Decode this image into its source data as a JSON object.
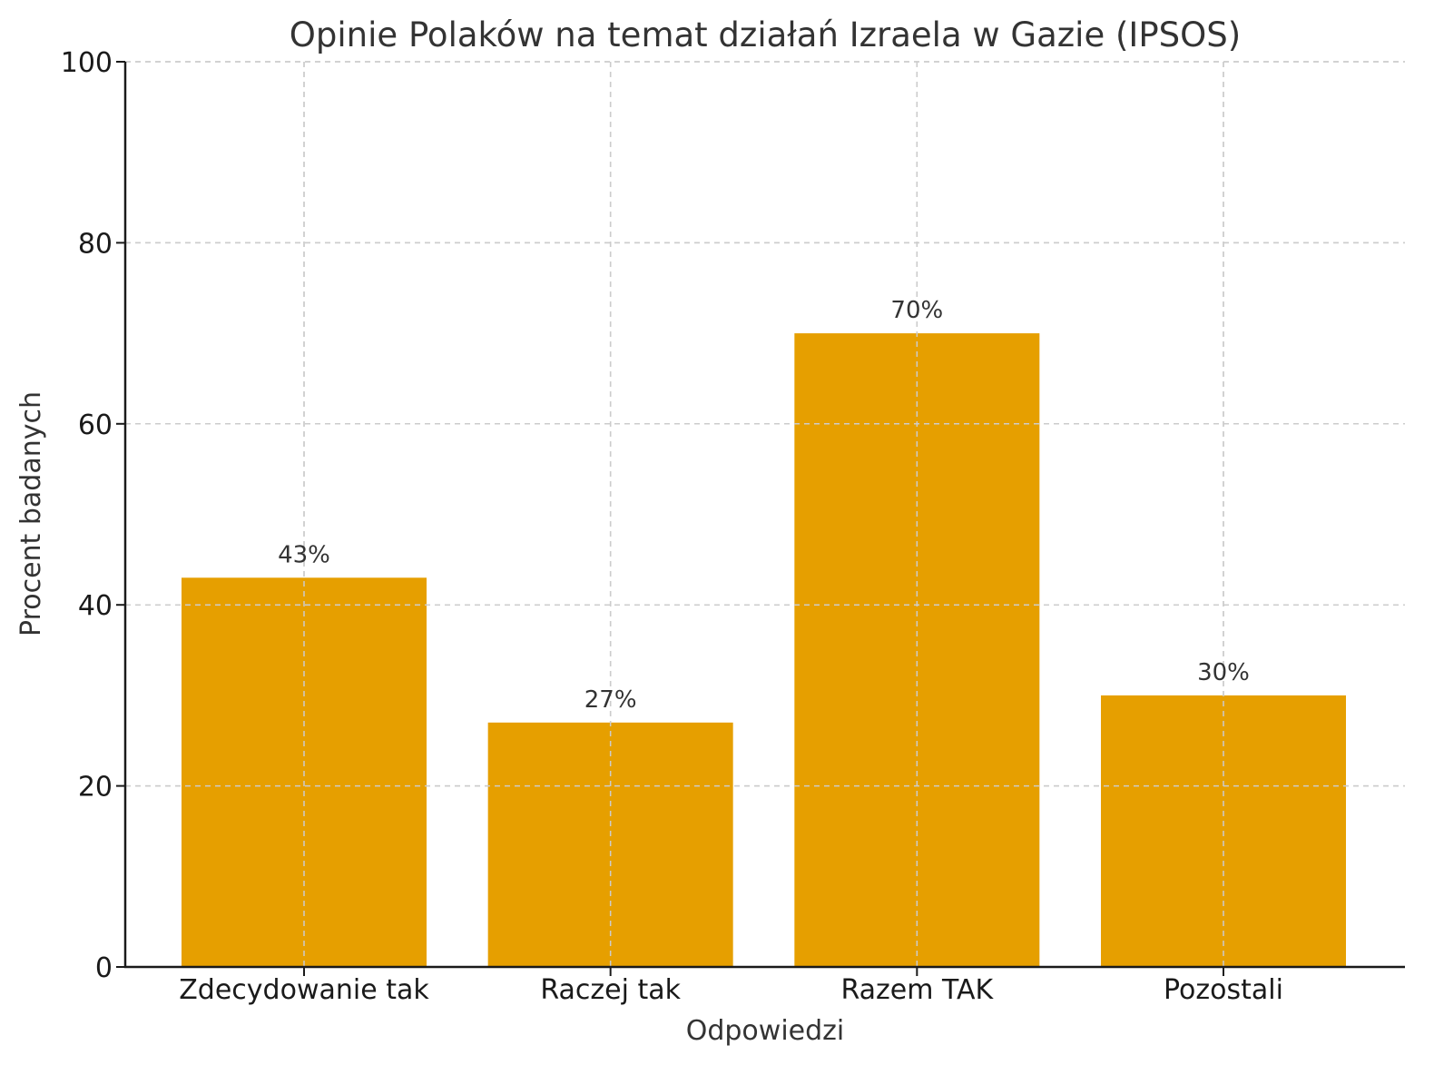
{
  "chart_data": {
    "type": "bar",
    "title": "Opinie Polaków na temat działań Izraela w Gazie (IPSOS)",
    "xlabel": "Odpowiedzi",
    "ylabel": "Procent badanych",
    "categories": [
      "Zdecydowanie tak",
      "Raczej tak",
      "Razem TAK",
      "Pozostali"
    ],
    "values": [
      43,
      27,
      70,
      30
    ],
    "data_labels": [
      "43%",
      "27%",
      "70%",
      "30%"
    ],
    "ylim": [
      0,
      100
    ],
    "y_ticks": [
      0,
      20,
      40,
      60,
      80,
      100
    ],
    "y_tick_labels": [
      "0",
      "20",
      "40",
      "60",
      "80",
      "100"
    ],
    "grid": true,
    "bar_color": "#E69F00",
    "grid_color": "#cccccc",
    "axis_color": "#1a1a1a"
  }
}
